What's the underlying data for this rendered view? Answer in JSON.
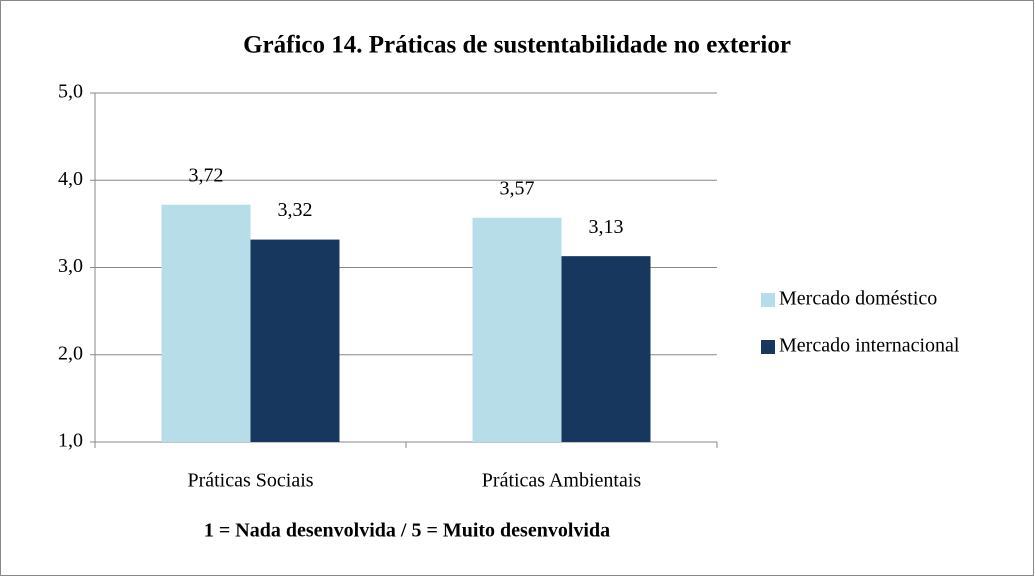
{
  "chart_data": {
    "type": "bar",
    "title": "Gráfico 14. Práticas de sustentabilidade no exterior",
    "x_label": "1 = Nada desenvolvida / 5 = Muito desenvolvida",
    "categories": [
      "Práticas Sociais",
      "Práticas Ambientais"
    ],
    "series": [
      {
        "name": "Mercado doméstico",
        "color": "#b7dee8",
        "values": [
          3.72,
          3.57
        ],
        "value_labels": [
          "3,72",
          "3,57"
        ]
      },
      {
        "name": "Mercado internacional",
        "color": "#17375e",
        "values": [
          3.32,
          3.13
        ],
        "value_labels": [
          "3,32",
          "3,13"
        ]
      }
    ],
    "ylim": [
      1,
      5
    ],
    "yticks": [
      {
        "value": 1,
        "label": "1,0"
      },
      {
        "value": 2,
        "label": "2,0"
      },
      {
        "value": 3,
        "label": "3,0"
      },
      {
        "value": 4,
        "label": "4,0"
      },
      {
        "value": 5,
        "label": "5,0"
      }
    ],
    "grid": true,
    "legend": "right"
  }
}
